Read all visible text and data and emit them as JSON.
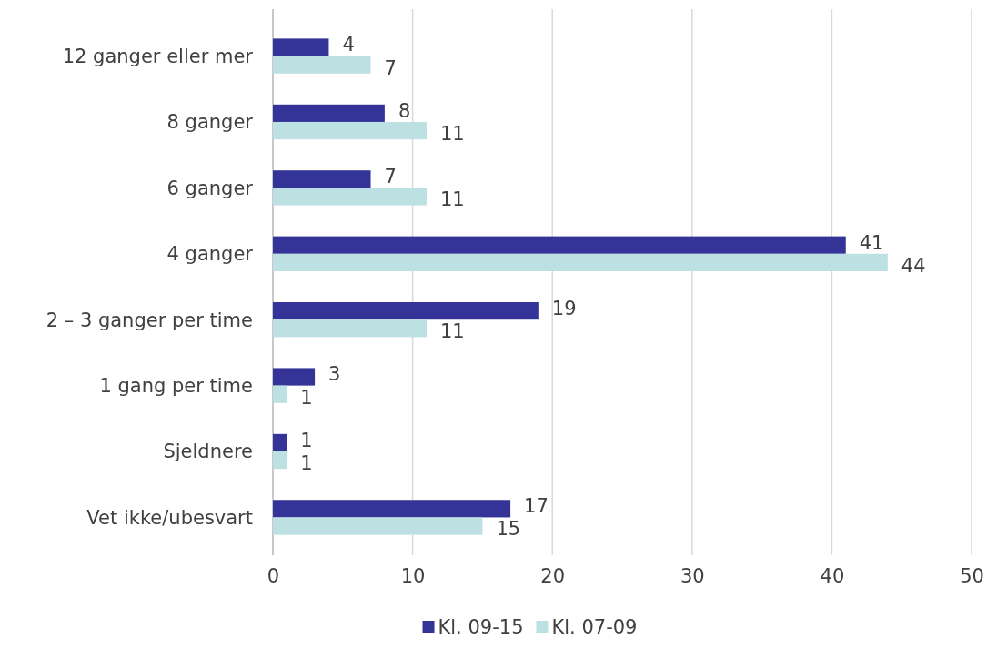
{
  "chart_data": {
    "type": "bar",
    "orientation": "horizontal",
    "categories": [
      "12 ganger eller mer",
      "8 ganger",
      "6 ganger",
      "4 ganger",
      "2 – 3 ganger per time",
      "1 gang per time",
      "Sjeldnere",
      "Vet ikke/ubesvart"
    ],
    "series": [
      {
        "name": "Kl. 09-15",
        "color": "#343398",
        "values": [
          4,
          8,
          7,
          41,
          19,
          3,
          1,
          17
        ]
      },
      {
        "name": "Kl. 07-09",
        "color": "#bde0e2",
        "values": [
          7,
          11,
          11,
          44,
          11,
          1,
          1,
          15
        ]
      }
    ],
    "xlim": [
      0,
      50
    ],
    "xticks": [
      0,
      10,
      20,
      30,
      40,
      50
    ],
    "grid": "x",
    "legend": "bottom",
    "data_labels": true
  }
}
